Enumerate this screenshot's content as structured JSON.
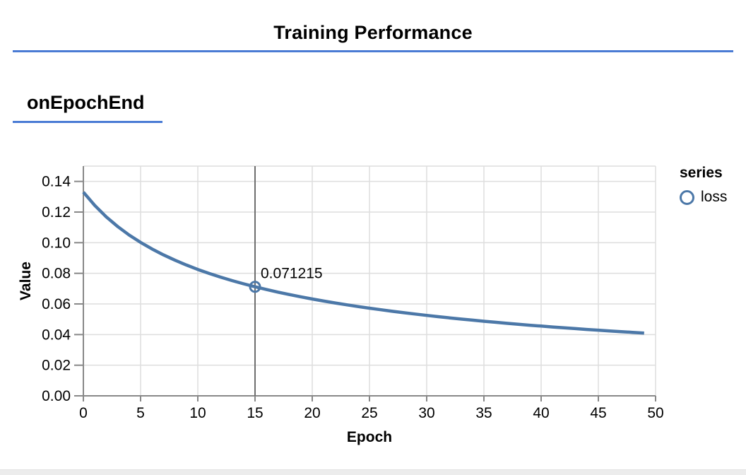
{
  "header": {
    "title": "Training Performance"
  },
  "section": {
    "title": "onEpochEnd"
  },
  "colors": {
    "accent_rule": "#4a7bd4",
    "series": "#4c78a8",
    "axis": "#888888",
    "grid": "#dedede",
    "hover_rule": "#6e6e6e",
    "text": "#000000",
    "footer_strip": "#ececec"
  },
  "chart_data": {
    "type": "line",
    "title": "",
    "xlabel": "Epoch",
    "ylabel": "Value",
    "xlim": [
      0,
      50
    ],
    "ylim": [
      0,
      0.15
    ],
    "grid": true,
    "x_ticks": [
      0,
      5,
      10,
      15,
      20,
      25,
      30,
      35,
      40,
      45,
      50
    ],
    "x_tick_labels": [
      "0",
      "5",
      "10",
      "15",
      "20",
      "25",
      "30",
      "35",
      "40",
      "45",
      "50"
    ],
    "y_ticks": [
      0,
      0.02,
      0.04,
      0.06,
      0.08,
      0.1,
      0.12,
      0.14
    ],
    "y_tick_labels": [
      "0.00",
      "0.02",
      "0.04",
      "0.06",
      "0.08",
      "0.10",
      "0.12",
      "0.14"
    ],
    "legend": {
      "title": "series",
      "position": "right",
      "symbol": "open-circle",
      "series_label": "loss"
    },
    "series": [
      {
        "name": "loss",
        "x": [
          0,
          1,
          2,
          3,
          4,
          5,
          6,
          7,
          8,
          9,
          10,
          11,
          12,
          13,
          14,
          15,
          16,
          17,
          18,
          19,
          20,
          21,
          22,
          23,
          24,
          25,
          26,
          27,
          28,
          29,
          30,
          31,
          32,
          33,
          34,
          35,
          36,
          37,
          38,
          39,
          40,
          41,
          42,
          43,
          44,
          45,
          46,
          47,
          48,
          49
        ],
        "values": [
          0.13302,
          0.12428,
          0.11688,
          0.11055,
          0.10502,
          0.10018,
          0.0959,
          0.09202,
          0.08857,
          0.08541,
          0.08253,
          0.0799,
          0.07747,
          0.07524,
          0.07316,
          0.071215,
          0.06942,
          0.06772,
          0.06614,
          0.06465,
          0.06324,
          0.06191,
          0.06064,
          0.05945,
          0.05831,
          0.05723,
          0.0562,
          0.05522,
          0.05428,
          0.05338,
          0.05252,
          0.0517,
          0.0509,
          0.05014,
          0.04941,
          0.04871,
          0.04803,
          0.04737,
          0.04674,
          0.04613,
          0.04554,
          0.04497,
          0.04442,
          0.04388,
          0.04336,
          0.04286,
          0.04237,
          0.0419,
          0.04144,
          0.041
        ]
      }
    ],
    "hover_point": {
      "epoch": 15,
      "value": 0.071215,
      "label": "0.071215"
    }
  }
}
